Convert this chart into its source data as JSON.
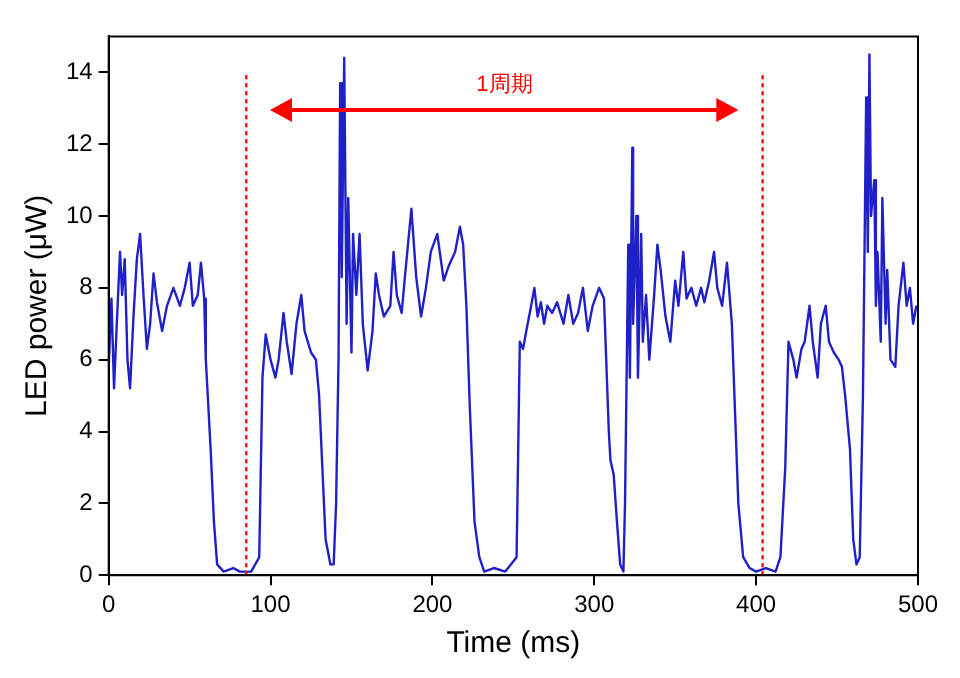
{
  "chart_data": {
    "type": "line",
    "xlabel": "Time (ms)",
    "ylabel": "LED power (μW)",
    "xlim": [
      0,
      500
    ],
    "xticks": [
      0,
      100,
      200,
      300,
      400,
      500
    ],
    "ylim": [
      0,
      15
    ],
    "yticks": [
      0,
      2,
      4,
      6,
      8,
      10,
      12,
      14
    ],
    "grid": false,
    "legend": false,
    "marker": "none",
    "line_style": "solid",
    "ref_lines": [
      {
        "axis": "x",
        "value": 85,
        "color": "#ff0000",
        "line_style": "dotted"
      },
      {
        "axis": "x",
        "value": 404,
        "color": "#ff0000",
        "line_style": "dotted"
      }
    ],
    "annotations": [
      "1周期"
    ],
    "series": [
      {
        "color": "#2020c8",
        "x": [
          0,
          1.7,
          3.3,
          5,
          7,
          8.3,
          9.9,
          11.6,
          13.2,
          15.3,
          17.4,
          19.4,
          21.5,
          23.6,
          25.6,
          27.7,
          29.8,
          33,
          36,
          40,
          44,
          47,
          50,
          52,
          55,
          57,
          59,
          60,
          63,
          65,
          67,
          71,
          77,
          81,
          88,
          93,
          95,
          97,
          100,
          103,
          105,
          108,
          110,
          113,
          116,
          119,
          121,
          125,
          128,
          130,
          132,
          134,
          137,
          139,
          140.5,
          142,
          143,
          144,
          145.5,
          147,
          148,
          150,
          151,
          153,
          155,
          157,
          160,
          163,
          165,
          167,
          170,
          174,
          176,
          178,
          181,
          183,
          187,
          190,
          193,
          196,
          199,
          203,
          207,
          210,
          214,
          217,
          219,
          221,
          223,
          226,
          229,
          232,
          238,
          245,
          252,
          254,
          256,
          258,
          261,
          263,
          265,
          267,
          269,
          271,
          274,
          277,
          281,
          284,
          287,
          290,
          293,
          296,
          299,
          303,
          306,
          309,
          310,
          312,
          314,
          316,
          318,
          319,
          321,
          322,
          323.5,
          324,
          326,
          327,
          329,
          330,
          332,
          334,
          337,
          339,
          341,
          344,
          347,
          350,
          352,
          355,
          357,
          360,
          363,
          366,
          368,
          371,
          374,
          376,
          379,
          382,
          385,
          387,
          389,
          392,
          396,
          400,
          406,
          412,
          415,
          418,
          420,
          423,
          425,
          428,
          430,
          433,
          435,
          438,
          440,
          443,
          445,
          448,
          451,
          453,
          455,
          458,
          460,
          462,
          464,
          466,
          468,
          469,
          470,
          471,
          473,
          474,
          475,
          477,
          478,
          480,
          481,
          483,
          486,
          488,
          491,
          493,
          495,
          497,
          499
        ],
        "values": [
          5.8,
          7.7,
          5.2,
          7.0,
          9.0,
          7.8,
          8.8,
          6.0,
          5.2,
          7.2,
          8.8,
          9.5,
          7.8,
          6.3,
          7.0,
          8.4,
          7.6,
          6.8,
          7.5,
          8.0,
          7.5,
          8.0,
          8.7,
          7.5,
          7.8,
          8.7,
          7.7,
          6.0,
          3.5,
          1.5,
          0.3,
          0.1,
          0.2,
          0.1,
          0.1,
          0.5,
          5.5,
          6.7,
          6.0,
          5.5,
          6.0,
          7.3,
          6.5,
          5.6,
          7.0,
          7.8,
          6.8,
          6.2,
          6.0,
          5.0,
          3.0,
          1.0,
          0.3,
          0.3,
          2.0,
          6.0,
          13.7,
          8.3,
          14.4,
          7.0,
          10.5,
          6.2,
          9.5,
          7.8,
          9.5,
          7.0,
          5.7,
          6.8,
          8.4,
          7.8,
          7.2,
          7.5,
          9.0,
          7.8,
          7.3,
          8.3,
          10.2,
          8.3,
          7.2,
          8.0,
          9.0,
          9.5,
          8.2,
          8.6,
          9.0,
          9.7,
          9.2,
          7.5,
          4.8,
          1.5,
          0.5,
          0.1,
          0.2,
          0.1,
          0.5,
          6.5,
          6.3,
          6.8,
          7.5,
          8.0,
          7.2,
          7.6,
          7.0,
          7.5,
          7.3,
          7.6,
          7.0,
          7.8,
          7.0,
          7.3,
          8.0,
          6.8,
          7.5,
          8.0,
          7.7,
          4.0,
          3.2,
          2.8,
          1.5,
          0.3,
          0.1,
          2.0,
          9.2,
          5.5,
          11.9,
          7.0,
          10.0,
          5.5,
          9.5,
          6.5,
          7.8,
          6.0,
          7.8,
          9.2,
          8.5,
          7.2,
          6.5,
          8.2,
          7.5,
          9.0,
          7.7,
          8.0,
          7.5,
          8.0,
          7.6,
          8.2,
          9.0,
          8.0,
          7.5,
          8.7,
          7.0,
          4.5,
          2.0,
          0.5,
          0.2,
          0.1,
          0.2,
          0.1,
          0.5,
          3.0,
          6.5,
          6.0,
          5.5,
          6.3,
          6.5,
          7.5,
          6.5,
          5.5,
          7.0,
          7.5,
          6.5,
          6.2,
          6.0,
          5.8,
          5.0,
          3.5,
          1.0,
          0.3,
          0.5,
          5.0,
          13.3,
          9.0,
          14.5,
          10.0,
          11.0,
          7.5,
          9.0,
          6.5,
          10.5,
          7.0,
          8.5,
          6.0,
          5.8,
          7.5,
          8.7,
          7.5,
          8.0,
          7.0,
          7.5
        ]
      }
    ]
  }
}
